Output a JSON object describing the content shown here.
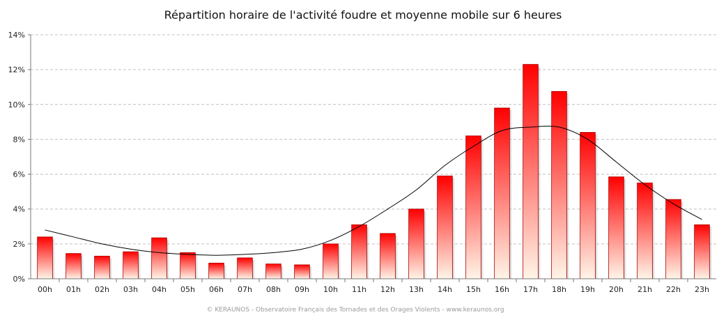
{
  "chart_data": {
    "type": "bar",
    "title": "Répartition horaire de l'activité foudre et moyenne mobile sur 6 heures",
    "xlabel": "",
    "ylabel": "",
    "categories": [
      "00h",
      "01h",
      "02h",
      "03h",
      "04h",
      "05h",
      "06h",
      "07h",
      "08h",
      "09h",
      "10h",
      "11h",
      "12h",
      "13h",
      "14h",
      "15h",
      "16h",
      "17h",
      "18h",
      "19h",
      "20h",
      "21h",
      "22h",
      "23h"
    ],
    "series": [
      {
        "values": [
          2.4,
          1.45,
          1.3,
          1.55,
          2.35,
          1.5,
          0.9,
          1.2,
          0.85,
          0.8,
          2.0,
          3.1,
          2.6,
          4.0,
          5.9,
          8.2,
          9.8,
          12.3,
          10.75,
          8.4,
          5.85,
          5.5,
          4.55,
          3.1
        ]
      }
    ],
    "moving_average": [
      2.8,
      2.4,
      2.0,
      1.7,
      1.5,
      1.4,
      1.35,
      1.4,
      1.5,
      1.7,
      2.2,
      3.0,
      4.0,
      5.1,
      6.5,
      7.6,
      8.5,
      8.7,
      8.7,
      8.0,
      6.7,
      5.4,
      4.3,
      3.4
    ],
    "ylim": [
      0,
      14
    ],
    "yticks": [
      "0%",
      "2%",
      "4%",
      "6%",
      "8%",
      "10%",
      "12%",
      "14%"
    ],
    "grid": true,
    "legend": "none",
    "colors": {
      "bar_top": "#ff0000",
      "bar_bottom": "#fff5e8",
      "bar_border": "#aa0000",
      "line": "#000000",
      "grid": "#c0c0c0"
    }
  },
  "footer": "© KERAUNOS - Observatoire Français des Tornades et des Orages Violents - www.keraunos.org"
}
